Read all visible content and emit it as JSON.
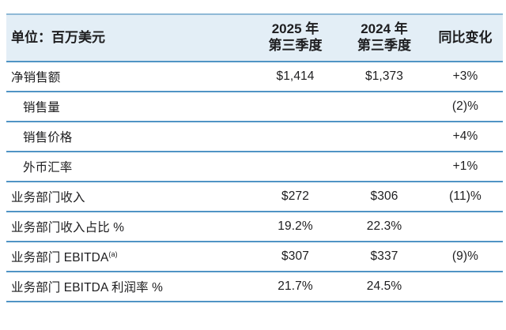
{
  "colors": {
    "header_bg": "#e3eef6",
    "divider": "#5094c4",
    "top_border": "#8fb9d6",
    "text": "#1d1d1f"
  },
  "table": {
    "columns": {
      "label": {
        "header_line1": "单位：百万美元",
        "header_line2": ""
      },
      "q3_2025": {
        "header_line1": "2025 年",
        "header_line2": "第三季度"
      },
      "q3_2024": {
        "header_line1": "2024 年",
        "header_line2": "第三季度"
      },
      "yoy": {
        "header_line1": "同比变化",
        "header_line2": ""
      }
    },
    "rows": [
      {
        "label": "净销售额",
        "label_sup": "",
        "indent": false,
        "q3_2025": "$1,414",
        "q3_2024": "$1,373",
        "yoy": "+3%"
      },
      {
        "label": "销售量",
        "label_sup": "",
        "indent": true,
        "q3_2025": "",
        "q3_2024": "",
        "yoy": "(2)%"
      },
      {
        "label": "销售价格",
        "label_sup": "",
        "indent": true,
        "q3_2025": "",
        "q3_2024": "",
        "yoy": "+4%"
      },
      {
        "label": "外币汇率",
        "label_sup": "",
        "indent": true,
        "q3_2025": "",
        "q3_2024": "",
        "yoy": "+1%"
      },
      {
        "label": "业务部门收入",
        "label_sup": "",
        "indent": false,
        "q3_2025": "$272",
        "q3_2024": "$306",
        "yoy": "(11)%"
      },
      {
        "label": "业务部门收入占比 %",
        "label_sup": "",
        "indent": false,
        "q3_2025": "19.2%",
        "q3_2024": "22.3%",
        "yoy": ""
      },
      {
        "label": "业务部门 EBITDA",
        "label_sup": "(a)",
        "indent": false,
        "q3_2025": "$307",
        "q3_2024": "$337",
        "yoy": "(9)%"
      },
      {
        "label": "业务部门 EBITDA 利润率 %",
        "label_sup": "",
        "indent": false,
        "q3_2025": "21.7%",
        "q3_2024": "24.5%",
        "yoy": ""
      }
    ]
  }
}
